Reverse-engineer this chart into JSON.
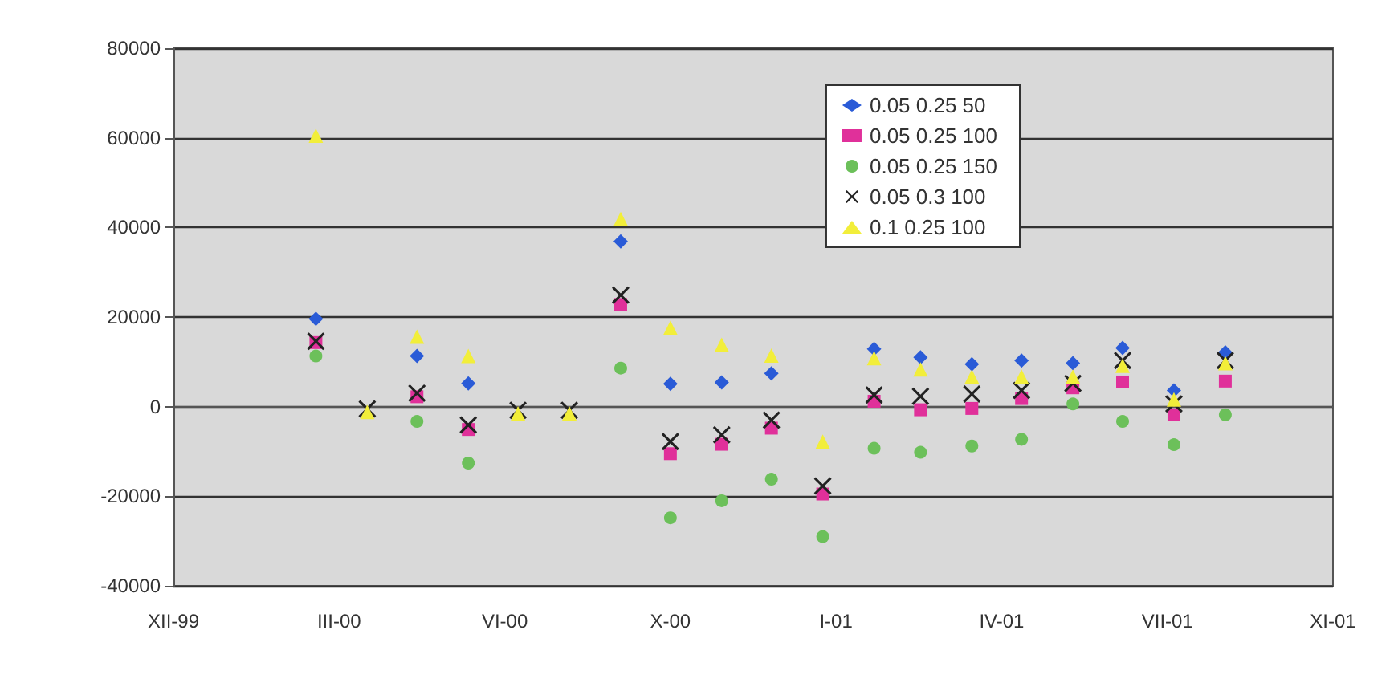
{
  "chart_data": {
    "type": "scatter",
    "x": [
      "2000-03",
      "2000-04",
      "2000-05",
      "2000-06",
      "2000-07",
      "2000-08",
      "2000-09",
      "2000-10",
      "2000-11",
      "2000-12",
      "2001-01",
      "2001-02",
      "2001-03",
      "2001-04",
      "2001-05",
      "2001-06",
      "2001-07",
      "2001-08",
      "2001-09"
    ],
    "series": [
      {
        "name": "0.05 0.25 50",
        "color": "#2a5bd7",
        "marker": "diamond",
        "values": [
          19600,
          null,
          11300,
          5200,
          null,
          null,
          36900,
          5100,
          5400,
          7400,
          null,
          12900,
          11000,
          9500,
          10300,
          9700,
          13100,
          3600,
          12100
        ]
      },
      {
        "name": "0.05 0.25 100",
        "color": "#e0309a",
        "marker": "square",
        "values": [
          14300,
          null,
          2200,
          -5100,
          null,
          null,
          22800,
          -10500,
          -8400,
          -4800,
          -19500,
          1200,
          -700,
          -400,
          1800,
          4200,
          5500,
          -1800,
          5700
        ]
      },
      {
        "name": "0.05 0.25 150",
        "color": "#6cc05a",
        "marker": "circle",
        "values": [
          11300,
          null,
          -3300,
          -12600,
          null,
          null,
          8600,
          -24800,
          -21000,
          -16200,
          -29000,
          -9300,
          -10200,
          -8800,
          -7300,
          600,
          -3300,
          -8500,
          -1800
        ]
      },
      {
        "name": "0.05 0.3 100",
        "color": "#222222",
        "marker": "cross",
        "values": [
          14600,
          -500,
          3000,
          -4100,
          -800,
          -800,
          24900,
          -7800,
          -6300,
          -3000,
          -17700,
          2600,
          2300,
          2800,
          3600,
          5200,
          10300,
          600,
          10300
        ]
      },
      {
        "name": "0.1 0.25 100",
        "color": "#f2ee3a",
        "marker": "triangle",
        "values": [
          60500,
          -1200,
          15600,
          11300,
          -1500,
          -1500,
          41900,
          17600,
          13800,
          11400,
          -7800,
          10800,
          8300,
          6700,
          6700,
          6700,
          9100,
          1600,
          9700
        ]
      }
    ],
    "xlim": [
      "1999-12-06",
      "2001-11-05"
    ],
    "xticks": [
      {
        "value": "1999-12-06",
        "label": "XII-99"
      },
      {
        "value": "2000-03-15",
        "label": "III-00"
      },
      {
        "value": "2000-06-23",
        "label": "VI-00"
      },
      {
        "value": "2000-10-01",
        "label": "X-00"
      },
      {
        "value": "2001-01-09",
        "label": "I-01"
      },
      {
        "value": "2001-04-19",
        "label": "IV-01"
      },
      {
        "value": "2001-07-28",
        "label": "VII-01"
      },
      {
        "value": "2001-11-05",
        "label": "XI-01"
      }
    ],
    "ylim": [
      -40000,
      80000
    ],
    "yticks": [
      -40000,
      -20000,
      0,
      20000,
      40000,
      60000,
      80000
    ],
    "grid": "y",
    "legend": "top right"
  }
}
